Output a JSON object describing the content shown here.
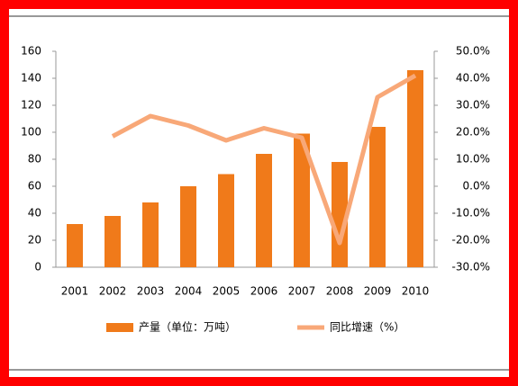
{
  "chart_data": {
    "type": "bar_line",
    "categories": [
      "2001",
      "2002",
      "2003",
      "2004",
      "2005",
      "2006",
      "2007",
      "2008",
      "2009",
      "2010"
    ],
    "series": [
      {
        "name": "产量（单位：万吨）",
        "type": "bar",
        "color": "#f07a1a",
        "values": [
          32,
          38,
          48,
          60,
          69,
          84,
          99,
          78,
          104,
          146
        ]
      },
      {
        "name": "同比增速（%）",
        "type": "line",
        "axis": "y2",
        "color": "#f8a878",
        "values": [
          null,
          18.5,
          26,
          22.5,
          17,
          21.5,
          18,
          -21,
          33,
          41
        ]
      }
    ],
    "ylim": [
      0,
      160
    ],
    "yticks": [
      0,
      20,
      40,
      60,
      80,
      100,
      120,
      140,
      160
    ],
    "y2lim": [
      -30,
      50
    ],
    "y2ticks": [
      {
        "value": -30,
        "label": "-30.0%"
      },
      {
        "value": -20,
        "label": "-20.0%"
      },
      {
        "value": -10,
        "label": "-10.0%"
      },
      {
        "value": 0,
        "label": "0.0%"
      },
      {
        "value": 10,
        "label": "10.0%"
      },
      {
        "value": 20,
        "label": "20.0%"
      },
      {
        "value": 30,
        "label": "30.0%"
      },
      {
        "value": 40,
        "label": "40.0%"
      },
      {
        "value": 50,
        "label": "50.0%"
      }
    ],
    "legend": "bottom",
    "grid": false
  }
}
